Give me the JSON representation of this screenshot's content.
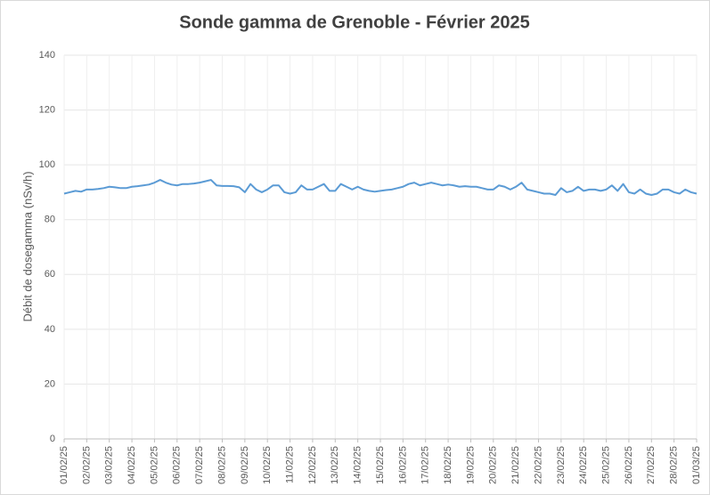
{
  "chart_data": {
    "type": "line",
    "title": "Sonde gamma de Grenoble - Février 2025",
    "y_label": "Débit de dosegamma (nSv/h)",
    "categories": [
      "01/02/25",
      null,
      null,
      null,
      "02/02/25",
      null,
      null,
      null,
      "03/02/25",
      null,
      null,
      null,
      "04/02/25",
      null,
      null,
      null,
      "05/02/25",
      null,
      null,
      null,
      "06/02/25",
      null,
      null,
      null,
      "07/02/25",
      null,
      null,
      null,
      "08/02/25",
      null,
      null,
      null,
      "09/02/25",
      null,
      null,
      null,
      "10/02/25",
      null,
      null,
      null,
      "11/02/25",
      null,
      null,
      null,
      "12/02/25",
      null,
      null,
      null,
      "13/02/25",
      null,
      null,
      null,
      "14/02/25",
      null,
      null,
      null,
      "15/02/25",
      null,
      null,
      null,
      "16/02/25",
      null,
      null,
      null,
      "17/02/25",
      null,
      null,
      null,
      "18/02/25",
      null,
      null,
      null,
      "19/02/25",
      null,
      null,
      null,
      "20/02/25",
      null,
      null,
      null,
      "21/02/25",
      null,
      null,
      null,
      "22/02/25",
      null,
      null,
      null,
      "23/02/25",
      null,
      null,
      null,
      "24/02/25",
      null,
      null,
      null,
      "25/02/25",
      null,
      null,
      null,
      "26/02/25",
      null,
      null,
      null,
      "27/02/25",
      null,
      null,
      null,
      "28/02/25",
      null,
      null,
      null,
      "01/03/25"
    ],
    "series": [
      {
        "name": "Débit de dosegamma",
        "color": "#5b9bd5",
        "values": [
          89.5,
          90,
          90.5,
          90.2,
          91,
          91,
          91.2,
          91.5,
          92,
          91.8,
          91.5,
          91.5,
          92,
          92.2,
          92.5,
          92.8,
          93.5,
          94.5,
          93.5,
          92.8,
          92.5,
          93,
          93,
          93.2,
          93.5,
          94,
          94.5,
          92.5,
          92.3,
          92.3,
          92.2,
          91.8,
          90,
          93,
          91,
          90,
          91,
          92.5,
          92.5,
          90,
          89.5,
          90,
          92.5,
          91,
          91,
          92,
          93,
          90.5,
          90.5,
          93,
          92,
          91,
          92,
          91,
          90.5,
          90.2,
          90.5,
          90.8,
          91,
          91.5,
          92,
          93,
          93.5,
          92.5,
          93,
          93.5,
          93,
          92.5,
          92.8,
          92.5,
          92,
          92.2,
          92,
          92,
          91.5,
          91,
          91,
          92.5,
          92,
          91,
          92,
          93.5,
          91,
          90.5,
          90,
          89.5,
          89.5,
          89,
          91.5,
          90,
          90.5,
          92,
          90.5,
          91,
          91,
          90.5,
          91,
          92.5,
          90.5,
          93,
          90,
          89.5,
          91,
          89.5,
          89,
          89.5,
          91,
          91,
          90,
          89.5,
          91,
          90,
          89.5
        ]
      }
    ],
    "ylim": [
      0,
      140
    ],
    "yticks": [
      0,
      20,
      40,
      60,
      80,
      100,
      120,
      140
    ],
    "grid": true
  }
}
